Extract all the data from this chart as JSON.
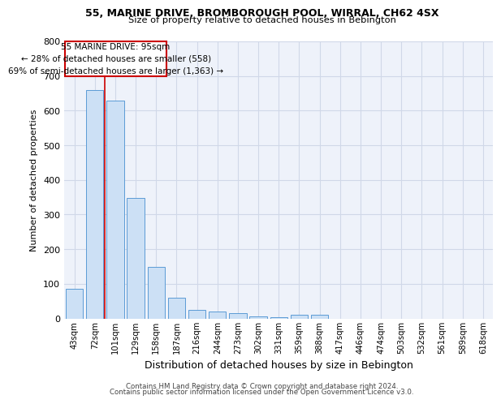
{
  "title1": "55, MARINE DRIVE, BROMBOROUGH POOL, WIRRAL, CH62 4SX",
  "title2": "Size of property relative to detached houses in Bebington",
  "xlabel": "Distribution of detached houses by size in Bebington",
  "ylabel": "Number of detached properties",
  "categories": [
    "43sqm",
    "72sqm",
    "101sqm",
    "129sqm",
    "158sqm",
    "187sqm",
    "216sqm",
    "244sqm",
    "273sqm",
    "302sqm",
    "331sqm",
    "359sqm",
    "388sqm",
    "417sqm",
    "446sqm",
    "474sqm",
    "503sqm",
    "532sqm",
    "561sqm",
    "589sqm",
    "618sqm"
  ],
  "values": [
    85,
    660,
    630,
    348,
    148,
    60,
    25,
    20,
    15,
    5,
    3,
    10,
    10,
    0,
    0,
    0,
    0,
    0,
    0,
    0,
    0
  ],
  "bar_color": "#cce0f5",
  "bar_edge_color": "#5b9bd5",
  "red_line_x": 1.5,
  "annotation_text": "55 MARINE DRIVE: 95sqm\n← 28% of detached houses are smaller (558)\n69% of semi-detached houses are larger (1,363) →",
  "annotation_box_color": "#ffffff",
  "annotation_box_edge": "#cc0000",
  "footnote1": "Contains HM Land Registry data © Crown copyright and database right 2024.",
  "footnote2": "Contains public sector information licensed under the Open Government Licence v3.0.",
  "ylim": [
    0,
    800
  ],
  "yticks": [
    0,
    100,
    200,
    300,
    400,
    500,
    600,
    700,
    800
  ],
  "grid_color": "#d0d8e8",
  "bg_color": "#eef2fa"
}
